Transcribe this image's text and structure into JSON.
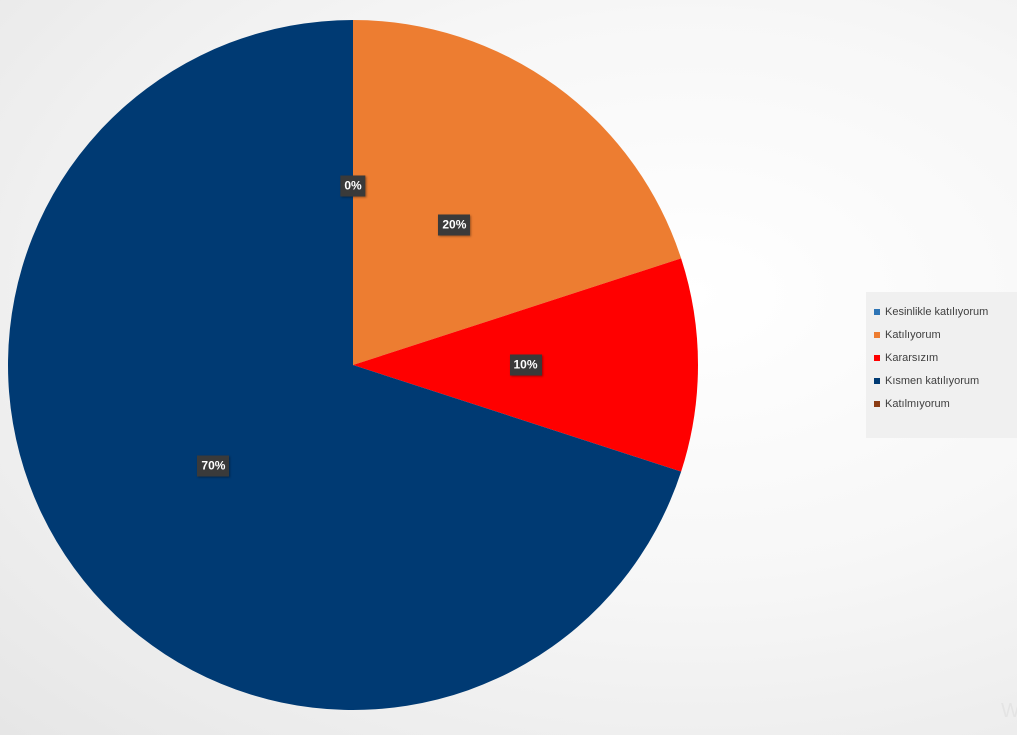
{
  "chart_data": {
    "type": "pie",
    "categories": [
      "Kesinlikle katılıyorum",
      "Katılıyorum",
      "Kararsızım",
      "Kısmen katılıyorum",
      "Katılmıyorum"
    ],
    "values": [
      0,
      20,
      10,
      70,
      0
    ],
    "data_labels": [
      "0%",
      "20%",
      "10%",
      "70%",
      ""
    ],
    "colors": [
      "#2e75b6",
      "#ed7d31",
      "#ff0000",
      "#003a73",
      "#8b3c14"
    ],
    "legend": {
      "placement": "right",
      "entries": [
        {
          "label": "Kesinlikle katılıyorum",
          "color": "#2e75b6"
        },
        {
          "label": "Katılıyorum",
          "color": "#ed7d31"
        },
        {
          "label": "Kararsızım",
          "color": "#ff0000"
        },
        {
          "label": "Kısmen katılıyorum",
          "color": "#003a73"
        },
        {
          "label": "Katılmıyorum",
          "color": "#8b3c14"
        }
      ]
    },
    "title": "",
    "start_angle": "12 o'clock",
    "direction": "clockwise"
  },
  "watermark": "W"
}
